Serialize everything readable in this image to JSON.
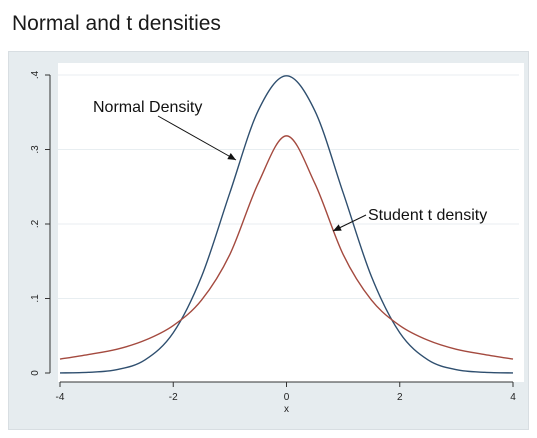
{
  "title": "Normal and t densities",
  "chart_data": {
    "type": "line",
    "xlabel": "x",
    "ylabel": "",
    "xlim": [
      -4,
      4
    ],
    "ylim": [
      0,
      0.4
    ],
    "x_ticks": [
      -4,
      -2,
      0,
      2,
      4
    ],
    "x_tick_labels": [
      "-4",
      "-2",
      "0",
      "2",
      "4"
    ],
    "y_ticks": [
      0,
      0.1,
      0.2,
      0.3,
      0.4
    ],
    "y_tick_labels": [
      "0",
      ".1",
      ".2",
      ".3",
      ".4"
    ],
    "grid": true,
    "x": [
      -4,
      -3.5,
      -3,
      -2.5,
      -2,
      -1.5,
      -1,
      -0.5,
      0,
      0.5,
      1,
      1.5,
      2,
      2.5,
      3,
      3.5,
      4
    ],
    "series": [
      {
        "name": "Normal Density",
        "color": "#2f4f6f",
        "values": [
          0.0001,
          0.0009,
          0.0044,
          0.0175,
          0.054,
          0.1295,
          0.242,
          0.3521,
          0.3989,
          0.3521,
          0.242,
          0.1295,
          0.054,
          0.0175,
          0.0044,
          0.0009,
          0.0001
        ]
      },
      {
        "name": "Student t density",
        "color": "#a44a3f",
        "values": [
          0.0187,
          0.0248,
          0.0318,
          0.0439,
          0.0637,
          0.0979,
          0.1592,
          0.2546,
          0.3183,
          0.2546,
          0.1592,
          0.0979,
          0.0637,
          0.0439,
          0.0318,
          0.0248,
          0.0187
        ]
      }
    ],
    "annotations": [
      {
        "text": "Normal Density",
        "series": 0
      },
      {
        "text": "Student t density",
        "series": 1
      }
    ]
  }
}
